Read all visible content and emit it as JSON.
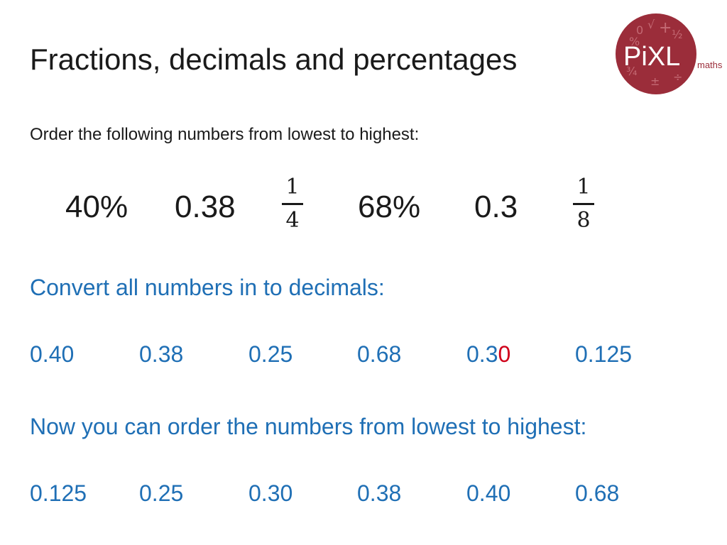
{
  "title": "Fractions, decimals and percentages",
  "instruction": "Order the following numbers from lowest to highest:",
  "numbers": {
    "n1": "40%",
    "n2": "0.38",
    "f1": {
      "numerator": "1",
      "denominator": "4"
    },
    "n3": "68%",
    "n4": "0.3",
    "f2": {
      "numerator": "1",
      "denominator": "8"
    }
  },
  "convert_heading": "Convert all numbers in to decimals:",
  "decimals": {
    "d1": "0.40",
    "d2": "0.38",
    "d3": "0.25",
    "d4": "0.68",
    "d5_prefix": "0.3",
    "d5_added": "0",
    "d6": "0.125"
  },
  "order_heading": "Now you can order the numbers from lowest to highest:",
  "ordered": [
    "0.125",
    "0.25",
    "0.30",
    "0.38",
    "0.40",
    "0.68"
  ],
  "logo": {
    "text": "PiXL",
    "sub": "maths",
    "symbols": [
      "0",
      "%",
      "√",
      "½",
      "¾",
      "±",
      "+",
      "÷"
    ]
  },
  "colors": {
    "text": "#1a1a1a",
    "accent_blue": "#1f6fb5",
    "highlight_red": "#d0021b",
    "logo_red": "#9b2d3a"
  }
}
